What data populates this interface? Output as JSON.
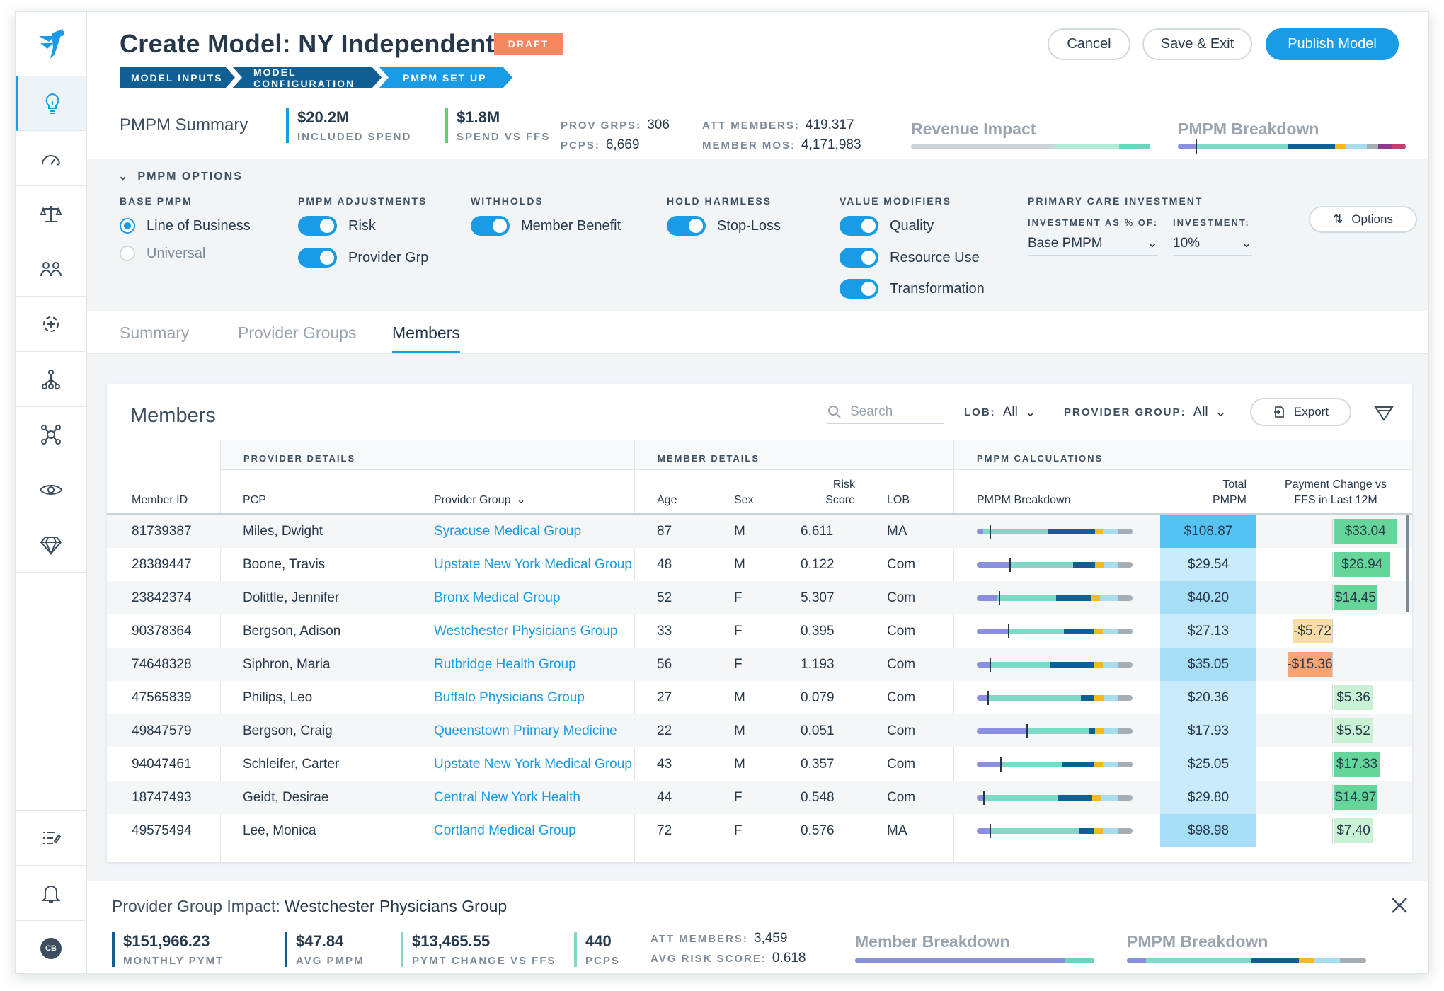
{
  "header": {
    "title": "Create Model: NY Independent",
    "badge": "DRAFT",
    "buttons": {
      "cancel": "Cancel",
      "save_exit": "Save & Exit",
      "publish": "Publish Model"
    },
    "breadcrumb": [
      "MODEL INPUTS",
      "MODEL CONFIGURATION",
      "PMPM SET UP"
    ]
  },
  "sidebar": {
    "items": [
      "lightbulb-icon",
      "gauge-icon",
      "scale-icon",
      "users-icon",
      "network-plus-icon",
      "hierarchy-icon",
      "hub-icon",
      "eye-icon",
      "diamond-icon"
    ],
    "bottom": [
      "list-edit-icon",
      "bell-icon"
    ],
    "avatar": "CB"
  },
  "summary": {
    "label": "PMPM Summary",
    "included_spend": {
      "value": "$20.2M",
      "label": "INCLUDED SPEND",
      "color": "#1a9be6"
    },
    "spend_vs_ffs": {
      "value": "$1.8M",
      "label": "SPEND VS FFS",
      "color": "#5fcf6f"
    },
    "prov_grps": {
      "label": "PROV GRPS:",
      "value": "306"
    },
    "pcps": {
      "label": "PCPS:",
      "value": "6,669"
    },
    "att_members": {
      "label": "ATT MEMBERS:",
      "value": "419,317"
    },
    "member_mos": {
      "label": "MEMBER MOS:",
      "value": "4,171,983"
    },
    "revenue_impact": "Revenue Impact",
    "pmpm_breakdown": "PMPM Breakdown"
  },
  "options": {
    "title": "PMPM OPTIONS",
    "base_pmpm": {
      "label": "BASE PMPM",
      "choices": [
        "Line of Business",
        "Universal"
      ],
      "selected": "Line of Business"
    },
    "adjustments": {
      "label": "PMPM ADJUSTMENTS",
      "items": [
        "Risk",
        "Provider Grp"
      ]
    },
    "withholds": {
      "label": "WITHHOLDS",
      "items": [
        "Member Benefit"
      ]
    },
    "hold_harmless": {
      "label": "HOLD HARMLESS",
      "items": [
        "Stop-Loss"
      ]
    },
    "value_modifiers": {
      "label": "VALUE MODIFIERS",
      "items": [
        "Quality",
        "Resource Use",
        "Transformation"
      ]
    },
    "primary_care": {
      "label": "PRIMARY CARE INVESTMENT",
      "investment_as_label": "INVESTMENT AS % OF:",
      "investment_as_value": "Base PMPM",
      "investment_label": "INVESTMENT:",
      "investment_value": "10%"
    },
    "options_button": "Options"
  },
  "tabs": [
    "Summary",
    "Provider Groups",
    "Members"
  ],
  "active_tab": "Members",
  "members": {
    "title": "Members",
    "search_placeholder": "Search",
    "lob_filter": {
      "label": "LOB:",
      "value": "All"
    },
    "provider_group_filter": {
      "label": "PROVIDER GROUP:",
      "value": "All"
    },
    "export": "Export",
    "groups": [
      "PROVIDER DETAILS",
      "MEMBER DETAILS",
      "PMPM CALCULATIONS"
    ],
    "columns": {
      "member_id": "Member ID",
      "pcp": "PCP",
      "provider_group": "Provider Group",
      "age": "Age",
      "sex": "Sex",
      "risk_1": "Risk",
      "risk_2": "Score",
      "lob": "LOB",
      "breakdown": "PMPM Breakdown",
      "total_1": "Total",
      "total_2": "PMPM",
      "change_1": "Payment Change vs",
      "change_2": "FFS in Last 12M"
    },
    "rows": [
      {
        "id": "81739387",
        "pcp": "Miles, Dwight",
        "group": "Syracuse Medical Group",
        "age": "87",
        "sex": "M",
        "risk": "6.611",
        "lob": "MA",
        "total": "$108.87",
        "change": "$33.04",
        "change_value": 33.04,
        "bar": [
          0.04,
          0.42,
          0.3,
          0.05,
          0.1,
          0.09
        ],
        "marker": 0.08
      },
      {
        "id": "28389447",
        "pcp": "Boone, Travis",
        "group": "Upstate New York Medical Group",
        "age": "48",
        "sex": "M",
        "risk": "0.122",
        "lob": "Com",
        "total": "$29.54",
        "change": "$26.94",
        "change_value": 26.94,
        "bar": [
          0.22,
          0.4,
          0.14,
          0.06,
          0.09,
          0.09
        ],
        "marker": 0.21
      },
      {
        "id": "23842374",
        "pcp": "Dolittle, Jennifer",
        "group": "Bronx Medical Group",
        "age": "52",
        "sex": "F",
        "risk": "5.307",
        "lob": "Com",
        "total": "$40.20",
        "change": "$14.45",
        "change_value": 14.45,
        "bar": [
          0.13,
          0.38,
          0.22,
          0.06,
          0.12,
          0.09
        ],
        "marker": 0.14
      },
      {
        "id": "90378364",
        "pcp": "Bergson, Adison",
        "group": "Westchester Physicians Group",
        "age": "33",
        "sex": "F",
        "risk": "0.395",
        "lob": "Com",
        "total": "$27.13",
        "change": "-$5.72",
        "change_value": -5.72,
        "bar": [
          0.21,
          0.35,
          0.19,
          0.06,
          0.1,
          0.09
        ],
        "marker": 0.2
      },
      {
        "id": "74648328",
        "pcp": "Siphron, Maria",
        "group": "Rutbridge Health Group",
        "age": "56",
        "sex": "F",
        "risk": "1.193",
        "lob": "Com",
        "total": "$35.05",
        "change": "-$15.36",
        "change_value": -15.36,
        "bar": [
          0.08,
          0.39,
          0.28,
          0.06,
          0.1,
          0.09
        ],
        "marker": 0.08
      },
      {
        "id": "47565839",
        "pcp": "Philips, Leo",
        "group": "Buffalo Physicians Group",
        "age": "27",
        "sex": "M",
        "risk": "0.079",
        "lob": "Com",
        "total": "$20.36",
        "change": "$5.36",
        "change_value": 5.36,
        "bar": [
          0.07,
          0.6,
          0.08,
          0.07,
          0.09,
          0.09
        ],
        "marker": 0.07
      },
      {
        "id": "49847579",
        "pcp": "Bergson, Craig",
        "group": "Queenstown Primary Medicine",
        "age": "22",
        "sex": "M",
        "risk": "0.051",
        "lob": "Com",
        "total": "$17.93",
        "change": "$5.52",
        "change_value": 5.52,
        "bar": [
          0.32,
          0.4,
          0.04,
          0.06,
          0.09,
          0.09
        ],
        "marker": 0.32
      },
      {
        "id": "94047461",
        "pcp": "Schleifer, Carter",
        "group": "Upstate New York Medical Group",
        "age": "43",
        "sex": "M",
        "risk": "0.357",
        "lob": "Com",
        "total": "$25.05",
        "change": "$17.33",
        "change_value": 17.33,
        "bar": [
          0.15,
          0.4,
          0.2,
          0.06,
          0.1,
          0.09
        ],
        "marker": 0.15
      },
      {
        "id": "18747493",
        "pcp": "Geidt, Desirae",
        "group": "Central New York Health",
        "age": "44",
        "sex": "F",
        "risk": "0.548",
        "lob": "Com",
        "total": "$29.80",
        "change": "$14.97",
        "change_value": 14.97,
        "bar": [
          0.04,
          0.48,
          0.22,
          0.06,
          0.11,
          0.09
        ],
        "marker": 0.04
      },
      {
        "id": "49575494",
        "pcp": "Lee, Monica",
        "group": "Cortland Medical Group",
        "age": "72",
        "sex": "F",
        "risk": "0.576",
        "lob": "MA",
        "total": "$98.98",
        "change": "$7.40",
        "change_value": 7.4,
        "bar": [
          0.08,
          0.58,
          0.09,
          0.06,
          0.1,
          0.09
        ],
        "marker": 0.08
      }
    ]
  },
  "footer": {
    "title_prefix": "Provider Group Impact:",
    "title_group": "Westchester Physicians Group",
    "monthly_pymt": {
      "value": "$151,966.23",
      "label": "MONTHLY PYMT"
    },
    "avg_pmpm": {
      "value": "$47.84",
      "label": "AVG PMPM"
    },
    "pymt_change": {
      "value": "$13,465.55",
      "label": "PYMT CHANGE VS FFS"
    },
    "pcps": {
      "value": "440",
      "label": "PCPS"
    },
    "att_members": {
      "label": "ATT MEMBERS:",
      "value": "3,459"
    },
    "avg_risk": {
      "label": "AVG RISK SCORE:",
      "value": "0.618"
    },
    "member_breakdown": "Member Breakdown",
    "pmpm_breakdown": "PMPM Breakdown"
  },
  "colors": {
    "accent": "#1a9be6",
    "breakdown_segments": [
      "#8b8fe0",
      "#7fd9c6",
      "#0f5f95",
      "#f6b91a",
      "#a8dcef",
      "#a5adb5"
    ],
    "positive_strong": "#66d59a",
    "positive_light": "#c9f2d4",
    "negative_light": "#fcdca6",
    "negative_strong": "#f7a476"
  }
}
